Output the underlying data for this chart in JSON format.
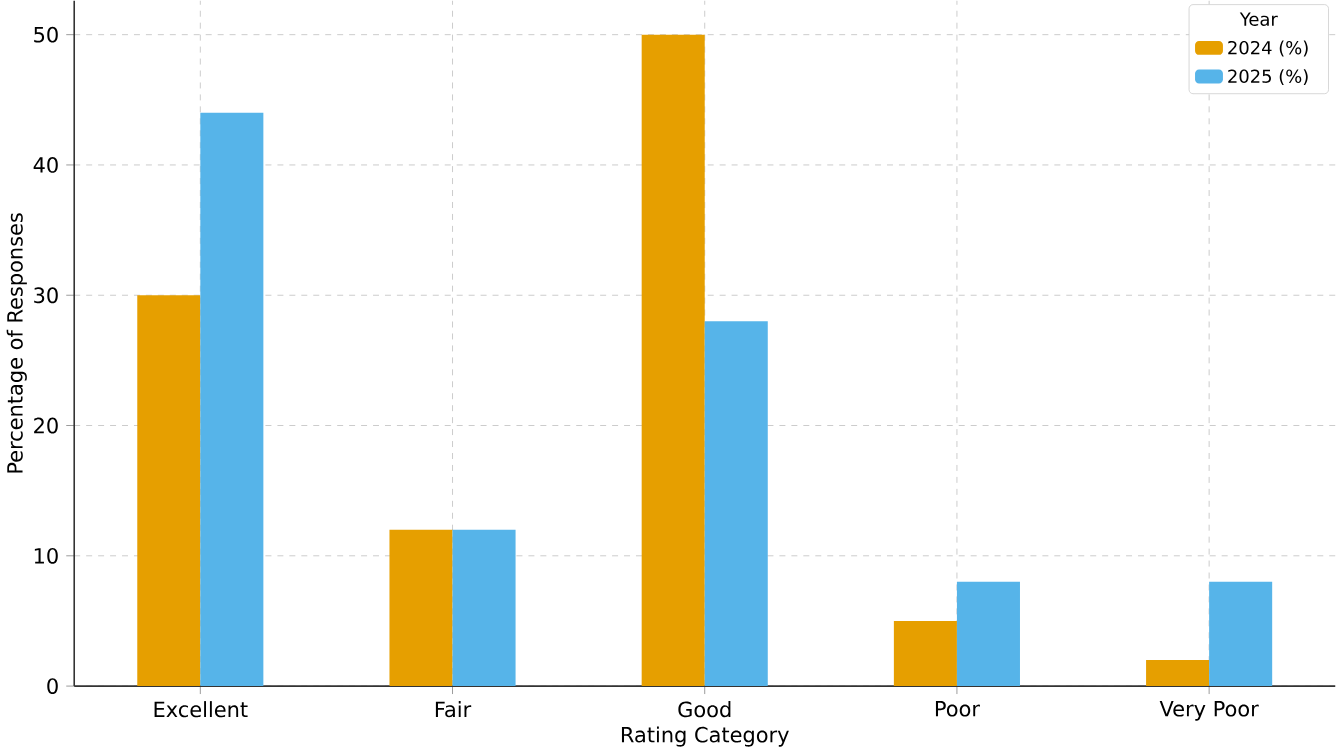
{
  "chart_data": {
    "type": "bar",
    "xlabel": "Rating Category",
    "ylabel": "Percentage of Responses",
    "legend_title": "Year",
    "categories": [
      "Excellent",
      "Fair",
      "Good",
      "Poor",
      "Very Poor"
    ],
    "series": [
      {
        "name": "2024 (%)",
        "color": "#e69f00",
        "values": [
          30,
          12,
          50,
          5,
          2
        ]
      },
      {
        "name": "2025 (%)",
        "color": "#56b4e9",
        "values": [
          44,
          12,
          28,
          8,
          8
        ]
      }
    ],
    "ylim": [
      0,
      52.6
    ],
    "yticks": [
      0,
      10,
      20,
      30,
      40,
      50
    ],
    "grid": true,
    "legend": "top right"
  }
}
